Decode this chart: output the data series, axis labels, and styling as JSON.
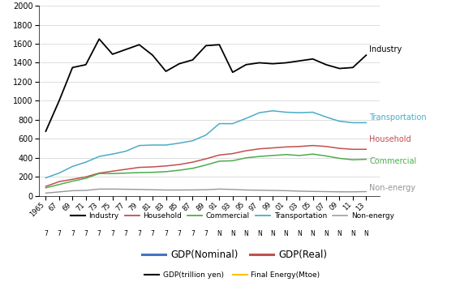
{
  "years": [
    1965,
    1967,
    1969,
    1971,
    1973,
    1975,
    1977,
    1979,
    1981,
    1983,
    1985,
    1987,
    1989,
    1991,
    1993,
    1995,
    1997,
    1999,
    2001,
    2003,
    2005,
    2007,
    2009,
    2011,
    2013
  ],
  "industry": [
    680,
    1000,
    1350,
    1380,
    1650,
    1490,
    1540,
    1590,
    1480,
    1310,
    1390,
    1430,
    1580,
    1590,
    1300,
    1380,
    1400,
    1390,
    1400,
    1420,
    1440,
    1380,
    1340,
    1350,
    1480
  ],
  "household": [
    100,
    150,
    175,
    200,
    240,
    260,
    280,
    300,
    305,
    315,
    330,
    355,
    390,
    430,
    445,
    475,
    495,
    505,
    515,
    520,
    530,
    520,
    500,
    490,
    490
  ],
  "commercial": [
    85,
    120,
    155,
    185,
    235,
    235,
    240,
    245,
    248,
    255,
    270,
    290,
    325,
    365,
    370,
    400,
    415,
    425,
    435,
    425,
    440,
    420,
    395,
    380,
    385
  ],
  "transportation": [
    190,
    240,
    310,
    355,
    415,
    440,
    470,
    530,
    535,
    535,
    555,
    580,
    640,
    760,
    760,
    815,
    875,
    895,
    880,
    875,
    880,
    830,
    785,
    770,
    770
  ],
  "non_energy": [
    30,
    42,
    55,
    58,
    72,
    72,
    70,
    68,
    65,
    62,
    62,
    63,
    65,
    72,
    68,
    62,
    60,
    58,
    55,
    50,
    47,
    45,
    43,
    43,
    45
  ],
  "industry_color": "#000000",
  "household_color": "#c0504d",
  "commercial_color": "#4eac4d",
  "transportation_color": "#4bacc6",
  "non_energy_color": "#969696",
  "background_color": "#ffffff",
  "ylim": [
    0,
    2000
  ],
  "yticks": [
    0,
    200,
    400,
    600,
    800,
    1000,
    1200,
    1400,
    1600,
    1800,
    2000
  ],
  "industry_label": "Industry",
  "household_label": "Household",
  "commercial_label": "Commercial",
  "transportation_label": "Transportation",
  "non_energy_label": "Non-energy",
  "gdp_nominal_label": "GDP(Nominal)",
  "gdp_real_label": "GDP(Real)",
  "gdp_nominal_color": "#4472c4",
  "gdp_real_color": "#c0504d",
  "gdp_trillion_label": "GDP(trillion yen)",
  "final_energy_label": "Final Energy(Mtoe)",
  "gdp_trillion_color": "#000000",
  "final_energy_color": "#ffc000"
}
